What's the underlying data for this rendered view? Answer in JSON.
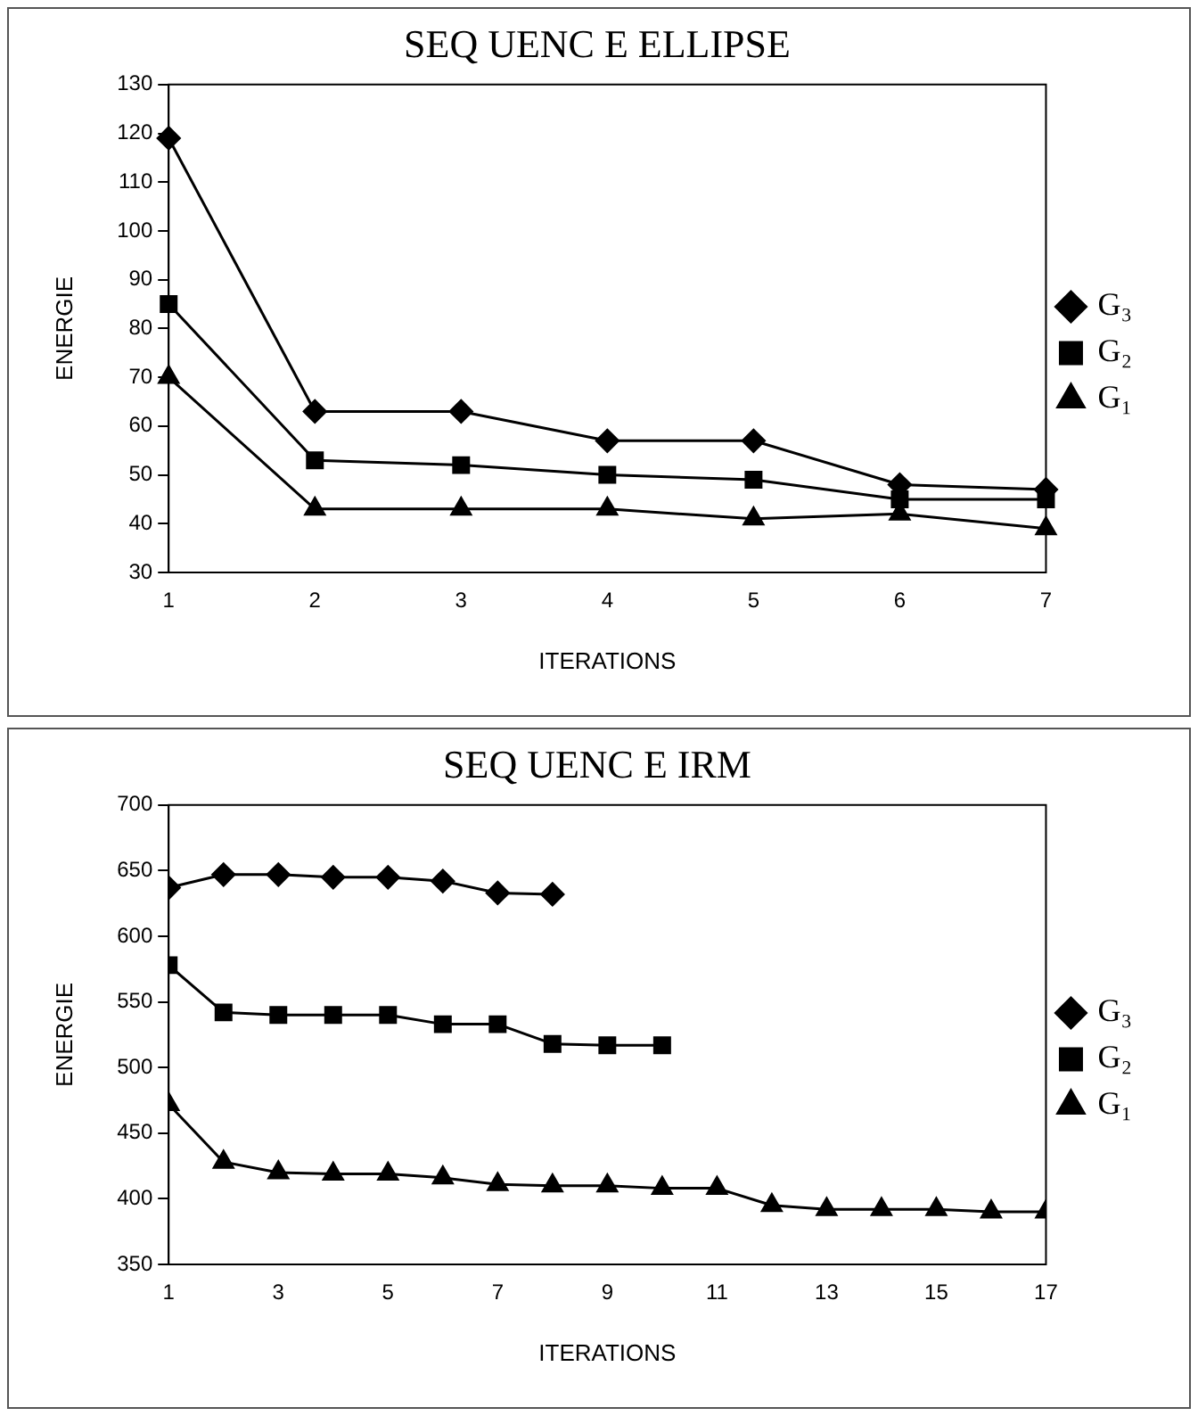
{
  "chart_data": [
    {
      "type": "line",
      "title": "SEQ UENC E ELLIPSE",
      "xlabel": "ITERATIONS",
      "ylabel": "ENERGIE",
      "categories": [
        "1",
        "2",
        "3",
        "4",
        "5",
        "6",
        "7"
      ],
      "series": [
        {
          "name": "G₃",
          "color": "#000000",
          "marker": "diamond",
          "values": [
            119,
            63,
            63,
            57,
            57,
            48,
            47
          ]
        },
        {
          "name": "G₂",
          "color": "#000000",
          "marker": "square",
          "values": [
            85,
            53,
            52,
            50,
            49,
            45,
            45
          ]
        },
        {
          "name": "G₁",
          "color": "#000000",
          "marker": "triangle",
          "values": [
            70,
            43,
            43,
            43,
            41,
            42,
            39
          ]
        }
      ],
      "ylim": [
        30,
        130
      ],
      "yticks": [
        30,
        40,
        50,
        60,
        70,
        80,
        90,
        100,
        110,
        120,
        130
      ],
      "grid": false,
      "legend": "right"
    },
    {
      "type": "line",
      "title": "SEQ UENC E IRM",
      "xlabel": "ITERATIONS",
      "ylabel": "ENERGIE",
      "x": [
        1,
        2,
        3,
        4,
        5,
        6,
        7,
        8,
        9,
        10,
        11,
        12,
        13,
        14,
        15,
        16,
        17
      ],
      "xlim": [
        1,
        17
      ],
      "xticks": [
        1,
        3,
        5,
        7,
        9,
        11,
        13,
        15,
        17
      ],
      "series": [
        {
          "name": "G₃",
          "color": "#000000",
          "marker": "diamond",
          "values": [
            637,
            647,
            647,
            645,
            645,
            642,
            633,
            632,
            null,
            null,
            null,
            null,
            null,
            null,
            null,
            null,
            null
          ]
        },
        {
          "name": "G₂",
          "color": "#000000",
          "marker": "square",
          "values": [
            578,
            542,
            540,
            540,
            540,
            533,
            533,
            518,
            517,
            517,
            null,
            null,
            null,
            null,
            null,
            null,
            null
          ]
        },
        {
          "name": "G₁",
          "color": "#000000",
          "marker": "triangle",
          "values": [
            472,
            428,
            420,
            419,
            419,
            416,
            411,
            410,
            410,
            408,
            408,
            395,
            392,
            392,
            392,
            390,
            390
          ]
        }
      ],
      "ylim": [
        350,
        700
      ],
      "yticks": [
        350,
        400,
        450,
        500,
        550,
        600,
        650,
        700
      ],
      "grid": false,
      "legend": "right"
    }
  ]
}
